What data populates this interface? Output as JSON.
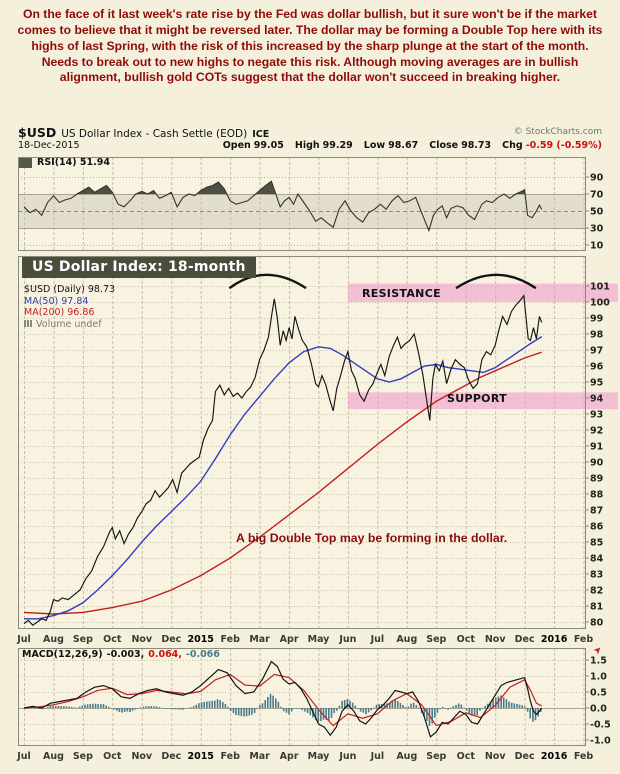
{
  "commentary": {
    "text": "On the face of it last week's rate rise by the Fed was dollar bullish, but it sure won't be if the market comes to believe that it might be reversed later. The dollar may be forming a Double Top here with its highs of last Spring, with the risk of this increased by the sharp plunge at the start of the month. Needs to break out to new highs to negate this risk. Although moving averages are in bullish alignment, bullish gold COTs suggest that the dollar won't succeed in breaking higher."
  },
  "header": {
    "symbol": "$USD",
    "title": "US Dollar Index - Cash Settle (EOD)",
    "exchange": "ICE",
    "copyright": "© StockCharts.com",
    "date": "18-Dec-2015",
    "quote": {
      "open_label": "Open",
      "open": "99.05",
      "high_label": "High",
      "high": "99.29",
      "low_label": "Low",
      "low": "98.67",
      "close_label": "Close",
      "close": "98.73",
      "chg_label": "Chg",
      "chg": "-0.59 (-0.59%)"
    }
  },
  "rsi": {
    "label": "RSI(14)",
    "value": "51.94"
  },
  "main": {
    "title_overlay": "US Dollar Index: 18-month",
    "legend": [
      {
        "label": "$USD (Daily) 98.73",
        "color": "#141414"
      },
      {
        "label": "MA(50) 97.84",
        "color": "#2f3fbf"
      },
      {
        "label": "MA(200) 96.86",
        "color": "#c41f1f"
      },
      {
        "label": "Volume undef",
        "color": "#7d7d6d"
      }
    ],
    "resistance_label": "RESISTANCE",
    "support_label": "SUPPORT",
    "annotation": "A big Double Top may be forming in the dollar."
  },
  "macd": {
    "label": "MACD(12,26,9)",
    "values": [
      {
        "text": "-0.003,",
        "color": "#141414"
      },
      {
        "text": "0.064,",
        "color": "#cc1111"
      },
      {
        "text": "-0.066",
        "color": "#4a7b8c"
      }
    ]
  },
  "icons": {
    "collapse_arrow": "➤"
  },
  "chart_data": [
    {
      "type": "line",
      "panel": "rsi",
      "name": "RSI(14)",
      "last_value": 51.94,
      "ylim": [
        0,
        100
      ],
      "yticks": [
        90,
        70,
        50,
        30,
        10
      ],
      "overbought_oversold_band": [
        30,
        70
      ],
      "x_unit": "months since Jul-2014; 6 = Jan-2015, 17 = Dec-2015",
      "series": [
        {
          "name": "RSI(14)",
          "color": "#33332e",
          "x": [
            0,
            0.2,
            0.4,
            0.6,
            0.8,
            1.0,
            1.2,
            1.4,
            1.6,
            1.8,
            2.0,
            2.2,
            2.4,
            2.6,
            2.8,
            3.0,
            3.2,
            3.4,
            3.6,
            3.8,
            4.0,
            4.2,
            4.4,
            4.6,
            4.8,
            5.0,
            5.2,
            5.4,
            5.6,
            5.8,
            6.0,
            6.2,
            6.4,
            6.6,
            6.8,
            7.0,
            7.2,
            7.4,
            7.6,
            7.8,
            8.0,
            8.2,
            8.4,
            8.55,
            8.7,
            8.85,
            9.0,
            9.15,
            9.3,
            9.5,
            9.7,
            9.9,
            10.1,
            10.3,
            10.5,
            10.7,
            10.9,
            11.1,
            11.3,
            11.5,
            11.7,
            11.9,
            12.1,
            12.3,
            12.5,
            12.7,
            12.9,
            13.1,
            13.3,
            13.5,
            13.75,
            13.9,
            14.05,
            14.2,
            14.35,
            14.5,
            14.7,
            14.9,
            15.1,
            15.3,
            15.55,
            15.7,
            15.9,
            16.1,
            16.3,
            16.5,
            16.7,
            16.9,
            17.0,
            17.1,
            17.25,
            17.4,
            17.5,
            17.58
          ],
          "y": [
            55,
            48,
            52,
            45,
            60,
            68,
            60,
            63,
            65,
            70,
            74,
            78,
            72,
            76,
            80,
            72,
            58,
            55,
            62,
            70,
            73,
            70,
            74,
            65,
            68,
            72,
            55,
            66,
            70,
            68,
            74,
            78,
            80,
            84,
            76,
            62,
            58,
            60,
            62,
            68,
            74,
            80,
            85,
            70,
            55,
            62,
            66,
            58,
            70,
            60,
            50,
            38,
            42,
            36,
            31,
            52,
            62,
            50,
            42,
            37,
            48,
            52,
            58,
            52,
            62,
            68,
            60,
            62,
            66,
            48,
            27,
            45,
            52,
            56,
            42,
            53,
            56,
            54,
            45,
            40,
            58,
            62,
            60,
            66,
            70,
            65,
            70,
            73,
            75,
            45,
            42,
            50,
            57,
            51.94
          ]
        }
      ]
    },
    {
      "type": "line",
      "panel": "price",
      "name": "$USD US Dollar Index - Cash Settle (EOD) ICE, Daily",
      "last_close": 98.73,
      "ylim": [
        79.6,
        102.9
      ],
      "yticks": [
        101,
        100,
        99,
        98,
        97,
        96,
        95,
        94,
        93,
        92,
        91,
        90,
        89,
        88,
        87,
        86,
        85,
        84,
        83,
        82,
        81,
        80
      ],
      "x_categories": [
        "Jul",
        "Aug",
        "Sep",
        "Oct",
        "Nov",
        "Dec",
        "2015",
        "Feb",
        "Mar",
        "Apr",
        "May",
        "Jun",
        "Jul",
        "Aug",
        "Sep",
        "Oct",
        "Nov",
        "Dec",
        "2016",
        "Feb"
      ],
      "grid": true,
      "series": [
        {
          "name": "$USD Daily close",
          "color": "#141414",
          "x": [
            0,
            0.15,
            0.3,
            0.45,
            0.6,
            0.75,
            0.9,
            1.0,
            1.15,
            1.3,
            1.5,
            1.7,
            1.9,
            2.1,
            2.3,
            2.5,
            2.7,
            2.9,
            3.0,
            3.1,
            3.25,
            3.4,
            3.55,
            3.7,
            3.85,
            4.0,
            4.15,
            4.3,
            4.45,
            4.6,
            4.75,
            4.9,
            5.05,
            5.2,
            5.35,
            5.5,
            5.65,
            5.8,
            5.95,
            6.1,
            6.25,
            6.4,
            6.5,
            6.65,
            6.8,
            6.95,
            7.1,
            7.25,
            7.4,
            7.55,
            7.7,
            7.85,
            8.0,
            8.15,
            8.3,
            8.42,
            8.5,
            8.6,
            8.7,
            8.8,
            8.9,
            9.0,
            9.1,
            9.2,
            9.32,
            9.45,
            9.6,
            9.75,
            9.9,
            10.0,
            10.12,
            10.25,
            10.38,
            10.5,
            10.62,
            10.75,
            10.88,
            11.0,
            11.12,
            11.25,
            11.4,
            11.55,
            11.7,
            11.85,
            12.0,
            12.12,
            12.25,
            12.4,
            12.55,
            12.68,
            12.8,
            12.95,
            13.1,
            13.25,
            13.4,
            13.55,
            13.7,
            13.78,
            13.88,
            13.97,
            14.1,
            14.22,
            14.35,
            14.5,
            14.65,
            14.8,
            14.95,
            15.1,
            15.25,
            15.4,
            15.55,
            15.7,
            15.85,
            16.0,
            16.12,
            16.25,
            16.4,
            16.55,
            16.7,
            16.85,
            16.97,
            17.05,
            17.12,
            17.2,
            17.3,
            17.4,
            17.5,
            17.58
          ],
          "y": [
            79.9,
            80.1,
            79.8,
            80.0,
            80.2,
            80.1,
            80.7,
            81.4,
            81.3,
            81.5,
            81.4,
            81.7,
            82.0,
            82.7,
            83.2,
            84.1,
            84.7,
            85.6,
            85.9,
            85.2,
            85.7,
            84.9,
            85.5,
            85.9,
            86.5,
            86.9,
            87.4,
            87.6,
            88.2,
            87.8,
            88.1,
            88.4,
            88.9,
            88.1,
            89.3,
            89.6,
            89.9,
            90.1,
            90.3,
            91.4,
            92.1,
            92.6,
            94.4,
            94.8,
            94.2,
            94.6,
            94.1,
            94.3,
            94.0,
            94.4,
            94.7,
            95.3,
            96.4,
            97.0,
            97.8,
            99.3,
            100.2,
            99.0,
            97.3,
            98.2,
            97.6,
            98.4,
            97.7,
            99.1,
            98.3,
            97.6,
            97.2,
            96.2,
            94.9,
            94.7,
            95.4,
            94.8,
            93.9,
            93.2,
            94.6,
            95.4,
            96.3,
            96.9,
            95.7,
            95.2,
            94.2,
            93.8,
            94.5,
            94.9,
            95.6,
            96.1,
            95.4,
            96.6,
            97.3,
            97.8,
            97.1,
            97.4,
            97.6,
            98.0,
            96.8,
            95.4,
            93.5,
            92.6,
            95.2,
            96.1,
            95.7,
            96.3,
            94.9,
            95.8,
            96.4,
            96.1,
            95.9,
            95.1,
            94.6,
            94.9,
            96.4,
            96.9,
            96.7,
            97.3,
            98.2,
            99.1,
            98.6,
            99.4,
            99.8,
            100.1,
            100.4,
            99.0,
            97.7,
            97.6,
            98.4,
            97.7,
            99.1,
            98.73
          ]
        },
        {
          "name": "MA(50)",
          "color": "#2f3fbf",
          "last_value": 97.84,
          "x": [
            0,
            0.5,
            1,
            1.5,
            2,
            2.5,
            3,
            3.5,
            4,
            4.5,
            5,
            5.5,
            6,
            6.5,
            7,
            7.5,
            8,
            8.5,
            9,
            9.5,
            10,
            10.4,
            10.8,
            11.2,
            11.6,
            12,
            12.4,
            12.8,
            13.2,
            13.6,
            14,
            14.4,
            14.8,
            15.2,
            15.6,
            16,
            16.4,
            16.8,
            17.2,
            17.58
          ],
          "y": [
            80.2,
            80.2,
            80.4,
            80.7,
            81.2,
            82.0,
            82.9,
            83.9,
            85.0,
            86.0,
            86.9,
            87.8,
            88.8,
            90.2,
            91.7,
            93.0,
            94.1,
            95.2,
            96.2,
            96.9,
            97.2,
            97.1,
            96.7,
            96.2,
            95.7,
            95.2,
            95.0,
            95.2,
            95.6,
            96.0,
            96.1,
            95.9,
            95.8,
            95.7,
            95.6,
            95.9,
            96.4,
            96.9,
            97.4,
            97.84
          ]
        },
        {
          "name": "MA(200)",
          "color": "#c41f1f",
          "last_value": 96.86,
          "x": [
            0,
            1,
            2,
            3,
            4,
            5,
            6,
            7,
            8,
            9,
            10,
            11,
            12,
            13,
            14,
            15,
            15.5,
            16,
            16.5,
            17,
            17.58
          ],
          "y": [
            80.6,
            80.5,
            80.6,
            80.9,
            81.3,
            82.0,
            82.9,
            84.0,
            85.3,
            86.7,
            88.1,
            89.6,
            91.1,
            92.5,
            93.8,
            94.8,
            95.3,
            95.7,
            96.1,
            96.5,
            96.86
          ]
        }
      ],
      "bands": [
        {
          "label": "RESISTANCE",
          "price_from": 100.0,
          "price_to": 101.15,
          "x_start_month": 11.0,
          "color": "#ef9ccc"
        },
        {
          "label": "SUPPORT",
          "price_from": 93.3,
          "price_to": 94.35,
          "x_start_month": 11.0,
          "color": "#ef9ccc"
        }
      ],
      "arc_annotations": [
        {
          "x_from": 7.0,
          "x_peak": 8.2,
          "x_to": 9.55,
          "price_base": 100.9,
          "price_peak": 102.5
        },
        {
          "x_from": 14.7,
          "x_peak": 16.05,
          "x_to": 17.35,
          "price_base": 100.9,
          "price_peak": 102.5
        }
      ]
    },
    {
      "type": "line+bar",
      "panel": "macd",
      "name": "MACD(12,26,9)",
      "last_values": {
        "macd": -0.003,
        "signal": 0.064,
        "histogram": -0.066
      },
      "ylim": [
        -1.19,
        1.88
      ],
      "yticks": [
        1.5,
        1.0,
        0.5,
        0.0,
        -0.5,
        -1.0
      ],
      "histogram_note": "histogram bars = MACD - Signal",
      "series": [
        {
          "name": "MACD",
          "color": "#141414",
          "x": [
            0,
            0.3,
            0.6,
            0.9,
            1.2,
            1.5,
            1.8,
            2.1,
            2.4,
            2.7,
            3.0,
            3.3,
            3.6,
            3.9,
            4.2,
            4.5,
            4.8,
            5.1,
            5.4,
            5.7,
            6.0,
            6.3,
            6.6,
            6.9,
            7.2,
            7.5,
            7.8,
            8.1,
            8.4,
            8.6,
            8.8,
            9.0,
            9.2,
            9.4,
            9.6,
            9.8,
            10.0,
            10.2,
            10.4,
            10.6,
            10.8,
            11.0,
            11.2,
            11.4,
            11.6,
            11.8,
            12.0,
            12.2,
            12.4,
            12.6,
            12.8,
            13.0,
            13.2,
            13.4,
            13.6,
            13.8,
            14.0,
            14.2,
            14.4,
            14.6,
            14.8,
            15.0,
            15.2,
            15.4,
            15.6,
            15.8,
            16.0,
            16.2,
            16.4,
            16.6,
            16.8,
            17.0,
            17.1,
            17.2,
            17.3,
            17.4,
            17.5,
            17.58
          ],
          "y": [
            0.0,
            0.05,
            0.0,
            0.15,
            0.2,
            0.25,
            0.3,
            0.5,
            0.65,
            0.7,
            0.6,
            0.35,
            0.3,
            0.45,
            0.55,
            0.6,
            0.5,
            0.45,
            0.4,
            0.5,
            0.7,
            0.95,
            1.2,
            1.1,
            0.7,
            0.45,
            0.5,
            0.9,
            1.45,
            1.3,
            0.9,
            0.75,
            0.8,
            0.6,
            0.3,
            -0.1,
            -0.5,
            -0.6,
            -0.85,
            -0.6,
            -0.1,
            0.1,
            -0.1,
            -0.4,
            -0.5,
            -0.3,
            -0.05,
            0.1,
            0.3,
            0.55,
            0.5,
            0.45,
            0.5,
            0.2,
            -0.3,
            -0.9,
            -0.75,
            -0.45,
            -0.5,
            -0.3,
            -0.1,
            -0.2,
            -0.45,
            -0.5,
            -0.2,
            0.1,
            0.4,
            0.7,
            0.8,
            0.85,
            0.9,
            0.95,
            0.6,
            0.2,
            -0.1,
            -0.2,
            -0.1,
            -0.003
          ]
        },
        {
          "name": "Signal",
          "color": "#c41f1f",
          "x": [
            0,
            0.5,
            1.0,
            1.5,
            2.0,
            2.5,
            3.0,
            3.5,
            4.0,
            4.5,
            5.0,
            5.5,
            6.0,
            6.5,
            7.0,
            7.5,
            8.0,
            8.5,
            9.0,
            9.5,
            10.0,
            10.5,
            11.0,
            11.5,
            12.0,
            12.5,
            13.0,
            13.5,
            14.0,
            14.5,
            15.0,
            15.5,
            16.0,
            16.5,
            17.0,
            17.2,
            17.4,
            17.58
          ],
          "y": [
            0.0,
            0.03,
            0.1,
            0.2,
            0.35,
            0.55,
            0.62,
            0.42,
            0.45,
            0.55,
            0.5,
            0.44,
            0.52,
            0.88,
            1.05,
            0.72,
            0.68,
            1.05,
            0.95,
            0.55,
            -0.05,
            -0.55,
            -0.18,
            -0.32,
            -0.18,
            0.22,
            0.45,
            0.1,
            -0.55,
            -0.42,
            -0.15,
            -0.3,
            0.08,
            0.65,
            0.88,
            0.55,
            0.15,
            0.064
          ]
        }
      ]
    }
  ]
}
